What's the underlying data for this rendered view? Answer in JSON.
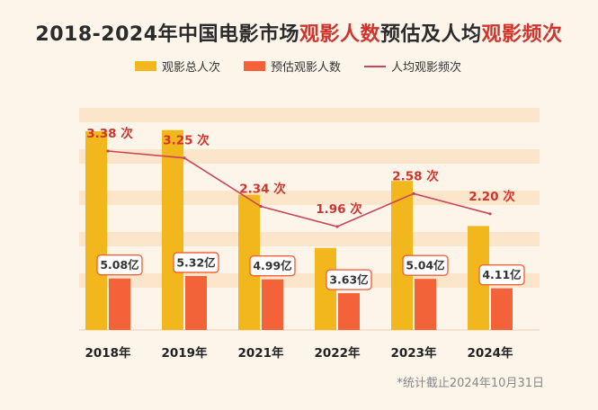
{
  "title": {
    "part1": "2018-2024年中国电影市场",
    "part2": "观影人数",
    "part3": "预估及人均",
    "part4": "观影频次"
  },
  "legend": {
    "total_label": "观影总人次",
    "audience_label": "预估观影人数",
    "frequency_label": "人均观影频次"
  },
  "footnote": "*统计截止2024年10月31日",
  "colors": {
    "total": "#f2b71c",
    "audience": "#f4623a",
    "line": "#c8455a",
    "label_red": "#d0342c",
    "band": "#fbe6cc"
  },
  "chart_data": {
    "type": "bar",
    "categories": [
      "2018年",
      "2019年",
      "2021年",
      "2022年",
      "2023年",
      "2024年"
    ],
    "series": [
      {
        "name": "观影总人次",
        "kind": "bar",
        "values": [
          17.2,
          17.3,
          11.7,
          7.1,
          12.9,
          9.0
        ]
      },
      {
        "name": "预估观影人数",
        "kind": "bar",
        "values": [
          5.08,
          5.32,
          4.99,
          3.63,
          5.04,
          4.11
        ],
        "labels": [
          "5.08亿",
          "5.32亿",
          "4.99亿",
          "3.63亿",
          "5.04亿",
          "4.11亿"
        ]
      },
      {
        "name": "人均观影频次",
        "kind": "line",
        "values": [
          3.38,
          3.25,
          2.34,
          1.96,
          2.58,
          2.2
        ],
        "labels": [
          "3.38 次",
          "3.25 次",
          "2.34 次",
          "1.96 次",
          "2.58 次",
          "2.20 次"
        ]
      }
    ],
    "ylim": [
      0,
      20
    ]
  }
}
